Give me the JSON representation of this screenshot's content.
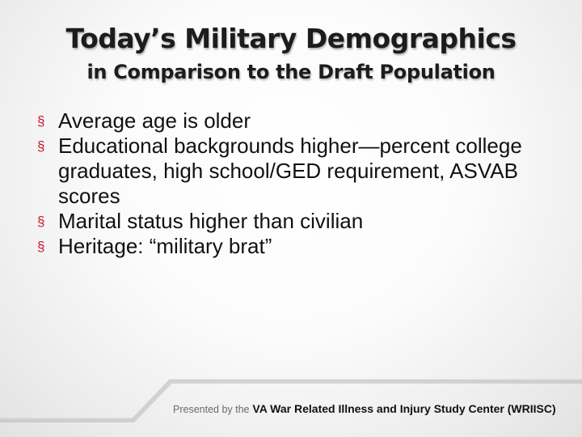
{
  "title": {
    "line1": "Today’s Military Demographics",
    "line2": "in Comparison to the Draft Population"
  },
  "bullets": [
    {
      "text": "Average age is older"
    },
    {
      "text": "Educational backgrounds higher—percent college graduates, high school/GED requirement, ASVAB scores"
    },
    {
      "text": "Marital status higher than civilian"
    },
    {
      "text": "Heritage:  “military brat”"
    }
  ],
  "bullet_marker": "§",
  "footer": {
    "prefix": "Presented by the",
    "org": "VA War Related Illness and Injury Study Center (WRIISC)"
  },
  "colors": {
    "accent": "#c41e2a",
    "title": "#1c1c1c",
    "body_text": "#111111",
    "footer_line": "#c8c8c8"
  }
}
